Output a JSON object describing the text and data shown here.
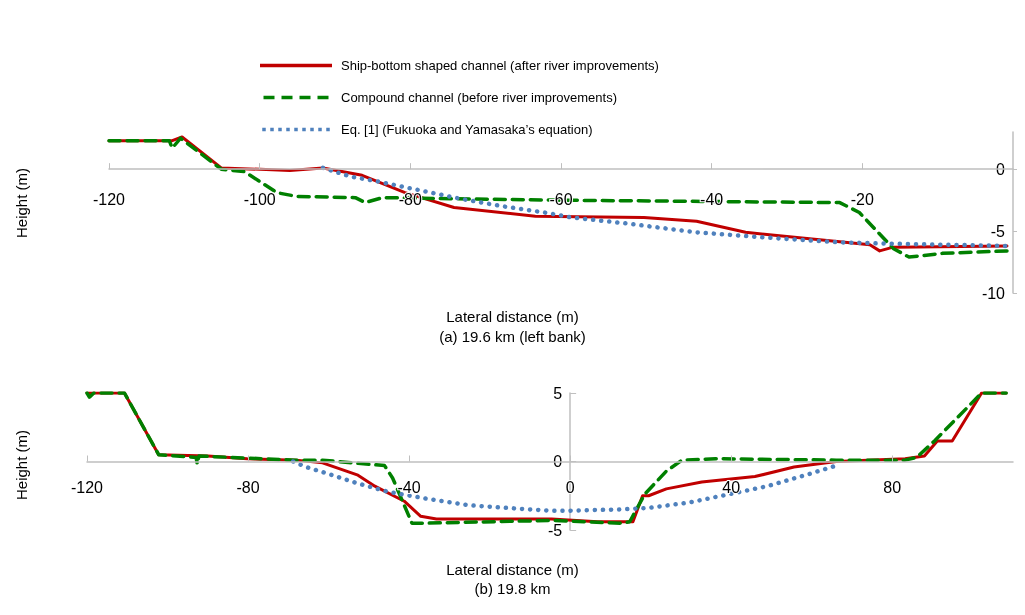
{
  "chart_data": [
    {
      "type": "line",
      "title": "(a) 19.6 km (left bank)",
      "xlabel": "Lateral distance (m)",
      "ylabel": "Height (m)",
      "legend": "top",
      "xlim": [
        -120,
        0
      ],
      "xticks": [
        -120,
        -100,
        -80,
        -60,
        -40,
        -20
      ],
      "ylim": [
        -10,
        3
      ],
      "yticks": [
        -10,
        -5,
        0
      ],
      "series": [
        {
          "name": "Ship-bottom shaped channel (after river improvements)",
          "color": "#c00000",
          "line_style": "solid",
          "x": [
            -120,
            -111.6,
            -110.3,
            -105.1,
            -96,
            -91.6,
            -86.4,
            -80.7,
            -74.2,
            -63.4,
            -49,
            -42,
            -35.5,
            -19,
            -17.7,
            -15.9,
            -0.8
          ],
          "values": [
            2.3,
            2.3,
            2.6,
            0.1,
            -0.1,
            0.1,
            -0.5,
            -1.9,
            -3.1,
            -3.8,
            -3.9,
            -4.2,
            -5.1,
            -6.1,
            -6.6,
            -6.3,
            -6.2
          ]
        },
        {
          "name": "Compound channel (before river improvements)",
          "color": "#008000",
          "line_style": "dashed",
          "x": [
            -120,
            -112,
            -111.6,
            -110.5,
            -105.1,
            -102,
            -97.7,
            -95.1,
            -87.3,
            -86,
            -83.7,
            -61.2,
            -23,
            -20.4,
            -15.9,
            -13.8,
            -9.4,
            -0.8
          ],
          "values": [
            2.3,
            2.3,
            1.7,
            2.5,
            0,
            -0.2,
            -1.9,
            -2.2,
            -2.3,
            -2.7,
            -2.3,
            -2.5,
            -2.7,
            -3.5,
            -6.4,
            -7.1,
            -6.8,
            -6.6
          ]
        },
        {
          "name": "Eq. [1] (Fukuoka and Yamasaka’s equation)",
          "color": "#4f81bd",
          "line_style": "dotted",
          "x": [
            -91.6,
            -87.9,
            -84.3,
            -78.8,
            -73.3,
            -67.7,
            -62.2,
            -58.6,
            -51.1,
            -42,
            -33.4,
            -23.4,
            -17.7,
            -0.8
          ],
          "values": [
            0.1,
            -0.6,
            -1,
            -1.7,
            -2.4,
            -3,
            -3.5,
            -3.9,
            -4.4,
            -5.1,
            -5.5,
            -5.9,
            -6,
            -6.2
          ]
        }
      ]
    },
    {
      "type": "line",
      "title": "(b) 19.8 km",
      "xlabel": "Lateral distance (m)",
      "ylabel": "Height (m)",
      "xlim": [
        -120,
        110
      ],
      "xticks": [
        -120,
        -80,
        -40,
        0,
        40,
        80
      ],
      "ylim": [
        -5,
        5
      ],
      "yticks": [
        -5,
        0,
        5
      ],
      "series": [
        {
          "color": "#c00000",
          "line_style": "solid",
          "x": [
            -120,
            -110.7,
            -102.2,
            -90,
            -80.2,
            -68,
            -61.5,
            -52.7,
            -48.5,
            -41.2,
            -37.1,
            -33.2,
            -4.6,
            6.8,
            15.6,
            18,
            19.5,
            23.9,
            32.7,
            45.9,
            55.6,
            66.1,
            83.2,
            88,
            91.2,
            94.9,
            102.2,
            108.3
          ],
          "values": [
            5,
            5,
            0.5,
            0.4,
            0.2,
            0.1,
            -0.1,
            -1,
            -1.8,
            -2.9,
            -4,
            -4.2,
            -4.2,
            -4.4,
            -4.4,
            -2.5,
            -2.5,
            -2,
            -1.5,
            -1.1,
            -0.4,
            0,
            0.2,
            0.4,
            1.5,
            1.5,
            5,
            5
          ]
        },
        {
          "color": "#008000",
          "line_style": "dashed",
          "x": [
            -120,
            -119.4,
            -118.3,
            -110.7,
            -102.2,
            -92.9,
            -92.6,
            -92.2,
            -68,
            -61.5,
            -46.1,
            -44.1,
            -39.3,
            -35.6,
            -4.6,
            12.4,
            14.8,
            18.5,
            23.9,
            27.8,
            36.1,
            66.1,
            83.2,
            86.1,
            90.5,
            102.2,
            108.3
          ],
          "values": [
            5,
            4.7,
            5,
            5,
            0.5,
            0.3,
            -0.2,
            0.4,
            0.1,
            0.1,
            -0.3,
            -1.2,
            -4.5,
            -4.5,
            -4.3,
            -4.5,
            -4.4,
            -2.4,
            -0.7,
            0.1,
            0.2,
            0.1,
            0.1,
            0.3,
            1.5,
            5,
            5
          ]
        },
        {
          "color": "#4f81bd",
          "line_style": "dotted",
          "x": [
            -68.8,
            -65.6,
            -59,
            -52.7,
            -45.4,
            -35.9,
            -24.9,
            -15.1,
            -4.6,
            -1.5,
            12.4,
            19,
            29.5,
            39.3,
            49,
            59.5,
            66.1
          ],
          "values": [
            0,
            -0.4,
            -1,
            -1.6,
            -2.2,
            -2.7,
            -3.2,
            -3.4,
            -3.6,
            -3.6,
            -3.5,
            -3.4,
            -3,
            -2.4,
            -1.8,
            -0.9,
            -0.3
          ]
        }
      ]
    }
  ]
}
